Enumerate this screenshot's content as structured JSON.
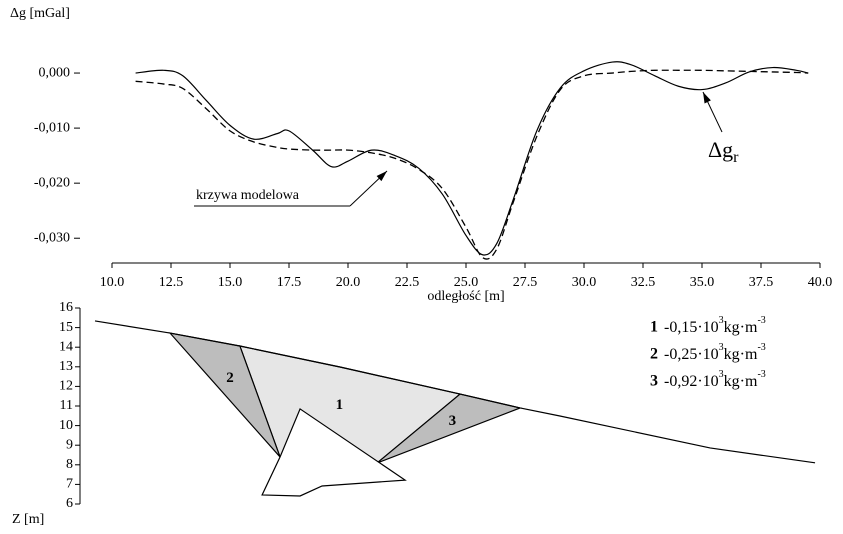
{
  "chart_data": [
    {
      "type": "line",
      "ylabel": "Δg [mGal]",
      "xlabel": "odległość [m]",
      "x": [
        11,
        12.2,
        13,
        14,
        15,
        16,
        17,
        17.5,
        18.5,
        19.3,
        20,
        21,
        22,
        23,
        24,
        25,
        25.7,
        26.3,
        27,
        28,
        29,
        30,
        31.2,
        32,
        33,
        34,
        35,
        36,
        37,
        38,
        39,
        39.5
      ],
      "series": [
        {
          "name": "Δg",
          "name_sub": "r",
          "color": "#000000",
          "dash": false,
          "values": [
            0,
            0.0005,
            -0.0005,
            -0.005,
            -0.0095,
            -0.012,
            -0.011,
            -0.0105,
            -0.014,
            -0.017,
            -0.016,
            -0.014,
            -0.015,
            -0.0173,
            -0.022,
            -0.0295,
            -0.033,
            -0.031,
            -0.023,
            -0.0105,
            -0.0027,
            0.0004,
            0.002,
            0.0015,
            -0.0005,
            -0.0024,
            -0.003,
            -0.0018,
            0.0002,
            0.001,
            0.0005,
            0
          ]
        },
        {
          "name": "krzywa modelowa",
          "color": "#000000",
          "dash": true,
          "values": [
            -0.0015,
            -0.002,
            -0.0028,
            -0.0065,
            -0.0105,
            -0.0125,
            -0.0135,
            -0.0138,
            -0.014,
            -0.014,
            -0.014,
            -0.0145,
            -0.0155,
            -0.0175,
            -0.021,
            -0.028,
            -0.0335,
            -0.032,
            -0.0235,
            -0.0115,
            -0.003,
            -0.0005,
            0,
            0.0003,
            0.0005,
            0.0005,
            0.0005,
            0.0004,
            0.0003,
            0.0002,
            0.0001,
            0
          ]
        }
      ],
      "xlim": [
        10,
        40
      ],
      "xticks": [
        {
          "value": 10,
          "label": "10.0"
        },
        {
          "value": 12.5,
          "label": "12.5"
        },
        {
          "value": 15,
          "label": "15.0"
        },
        {
          "value": 17.5,
          "label": "17.5"
        },
        {
          "value": 20,
          "label": "20.0"
        },
        {
          "value": 22.5,
          "label": "22.5"
        },
        {
          "value": 25,
          "label": "25.0"
        },
        {
          "value": 27.5,
          "label": "27.5"
        },
        {
          "value": 30,
          "label": "30.0"
        },
        {
          "value": 32.5,
          "label": "32.5"
        },
        {
          "value": 35,
          "label": "35.0"
        },
        {
          "value": 37.5,
          "label": "37.5"
        },
        {
          "value": 40,
          "label": "40.0"
        }
      ],
      "ylim": [
        -0.0345,
        0.008
      ],
      "yticks": [
        {
          "value": 0,
          "label": "0,000"
        },
        {
          "value": -0.01,
          "label": "-0,010"
        },
        {
          "value": -0.02,
          "label": "-0,020"
        },
        {
          "value": -0.03,
          "label": "-0,030"
        }
      ]
    },
    {
      "type": "polygon",
      "ylabel": "Z [m]",
      "xlim": [
        10,
        40
      ],
      "ylim": [
        6,
        16
      ],
      "yticks": [
        6,
        7,
        8,
        9,
        10,
        11,
        12,
        13,
        14,
        15,
        16
      ],
      "ground": {
        "x": [
          9.28,
          12.46,
          15.42,
          19.66,
          24.75,
          27.29,
          28.98,
          35.34,
          39.79
        ],
        "z": [
          15.34,
          14.72,
          14.06,
          12.99,
          11.61,
          10.9,
          10.49,
          8.86,
          8.1
        ]
      },
      "bodies": [
        {
          "label": "1",
          "color": "#e6e6e6",
          "density": "-0,15·10",
          "density_exp": "3",
          "unit": "kg·m",
          "unit_exp": "-3",
          "x": [
            15.42,
            19.66,
            24.75,
            21.23,
            17.12
          ],
          "z": [
            14.06,
            12.99,
            11.61,
            8.09,
            8.4
          ]
        },
        {
          "label": "2",
          "color": "#bdbdbd",
          "density": "-0,25·10",
          "density_exp": "3",
          "unit": "kg·m",
          "unit_exp": "-3",
          "x": [
            12.46,
            15.42,
            17.12
          ],
          "z": [
            14.72,
            14.06,
            8.4
          ]
        },
        {
          "label": "3",
          "color": "#bdbdbd",
          "density": "-0,92·10",
          "density_exp": "3",
          "unit": "kg·m",
          "unit_exp": "-3",
          "x": [
            24.75,
            27.29,
            21.23
          ],
          "z": [
            11.61,
            10.9,
            8.09
          ]
        }
      ],
      "block": {
        "color": "#ffffff",
        "x": [
          17.97,
          22.42,
          18.9,
          17.97,
          16.36,
          17.12
        ],
        "z": [
          10.85,
          7.22,
          6.92,
          6.41,
          6.46,
          8.4
        ]
      }
    }
  ]
}
